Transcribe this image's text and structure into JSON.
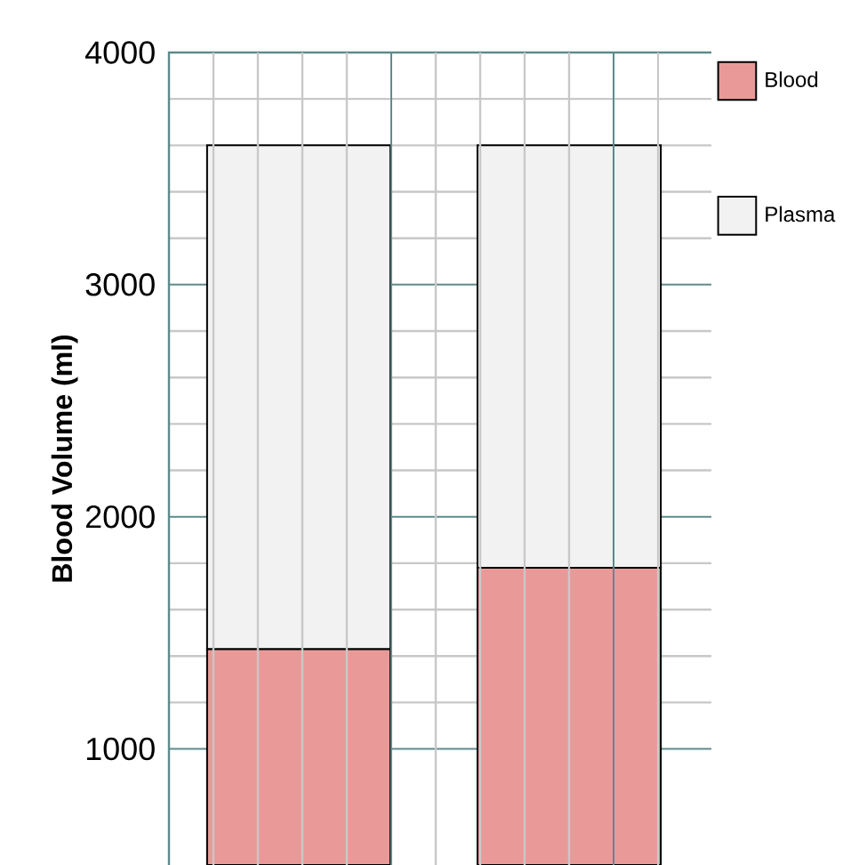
{
  "chart_data": {
    "type": "bar",
    "stacked": true,
    "ylabel": "Blood Volume (ml)",
    "categories": [
      null,
      null
    ],
    "series": [
      {
        "name": "Blood",
        "color": "#ea9999",
        "values": [
          1430,
          1780
        ]
      },
      {
        "name": "Plasma",
        "color": "#f2f2f2",
        "values": [
          2170,
          1820
        ]
      }
    ],
    "ylim": [
      500,
      4000
    ],
    "yticks": [
      1000,
      2000,
      3000,
      4000
    ],
    "grid": true,
    "legend": "top right"
  }
}
